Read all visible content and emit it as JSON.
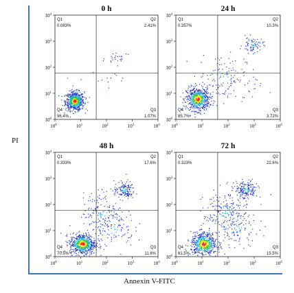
{
  "chart_data": {
    "type": "scatter",
    "ylabel": "PI",
    "xlabel": "Annexin V-FITC",
    "axis": {
      "scale": "log",
      "range": [
        1,
        10000
      ],
      "quadrant_gate": {
        "x": 40,
        "y": 60
      }
    },
    "ticks": [
      {
        "base": "10",
        "exp": "0"
      },
      {
        "base": "10",
        "exp": "1"
      },
      {
        "base": "10",
        "exp": "2"
      },
      {
        "base": "10",
        "exp": "3"
      },
      {
        "base": "10",
        "exp": "4"
      }
    ],
    "panels": [
      {
        "title": "0 h",
        "quadrants": [
          {
            "label": "Q1",
            "value": "0.083%",
            "pos": "top-left"
          },
          {
            "label": "Q2",
            "value": "2.41%",
            "pos": "top-right"
          },
          {
            "label": "Q3",
            "value": "1.07%",
            "pos": "bottom-right"
          },
          {
            "label": "Q4",
            "value": "96.4%",
            "pos": "bottom-left"
          }
        ],
        "populations": [
          {
            "x": 6,
            "y": 5,
            "sx": 0.18,
            "sy": 0.18,
            "count": 650
          },
          {
            "x": 300,
            "y": 250,
            "sx": 0.25,
            "sy": 0.12,
            "count": 22
          },
          {
            "x": 90,
            "y": 30,
            "sx": 0.5,
            "sy": 0.45,
            "count": 16
          }
        ]
      },
      {
        "title": "24 h",
        "quadrants": [
          {
            "label": "Q1",
            "value": "0.357%",
            "pos": "top-left"
          },
          {
            "label": "Q2",
            "value": "10.3%",
            "pos": "top-right"
          },
          {
            "label": "Q3",
            "value": "3.72%",
            "pos": "bottom-right"
          },
          {
            "label": "Q4",
            "value": "85.7%",
            "pos": "bottom-left"
          }
        ],
        "populations": [
          {
            "x": 7,
            "y": 6,
            "sx": 0.22,
            "sy": 0.22,
            "count": 650
          },
          {
            "x": 900,
            "y": 700,
            "sx": 0.2,
            "sy": 0.15,
            "count": 75
          },
          {
            "x": 60,
            "y": 45,
            "sx": 0.45,
            "sy": 0.45,
            "count": 110
          },
          {
            "x": 200,
            "y": 15,
            "sx": 0.5,
            "sy": 0.35,
            "count": 30
          }
        ]
      },
      {
        "title": "48 h",
        "quadrants": [
          {
            "label": "Q1",
            "value": "0.333%",
            "pos": "top-left"
          },
          {
            "label": "Q2",
            "value": "17.6%",
            "pos": "top-right"
          },
          {
            "label": "Q3",
            "value": "11.6%",
            "pos": "bottom-right"
          },
          {
            "label": "Q4",
            "value": "70.5%",
            "pos": "bottom-left"
          }
        ],
        "populations": [
          {
            "x": 12,
            "y": 3,
            "sx": 0.25,
            "sy": 0.2,
            "count": 650
          },
          {
            "x": 500,
            "y": 350,
            "sx": 0.2,
            "sy": 0.17,
            "count": 140
          },
          {
            "x": 80,
            "y": 50,
            "sx": 0.4,
            "sy": 0.4,
            "count": 170
          },
          {
            "x": 200,
            "y": 10,
            "sx": 0.4,
            "sy": 0.3,
            "count": 70
          }
        ]
      },
      {
        "title": "72 h",
        "quadrants": [
          {
            "label": "Q1",
            "value": "0.323%",
            "pos": "top-left"
          },
          {
            "label": "Q2",
            "value": "22.6%",
            "pos": "top-right"
          },
          {
            "label": "Q3",
            "value": "15.5%",
            "pos": "bottom-right"
          },
          {
            "label": "Q4",
            "value": "61.5%",
            "pos": "bottom-left"
          }
        ],
        "populations": [
          {
            "x": 12,
            "y": 3,
            "sx": 0.25,
            "sy": 0.22,
            "count": 600
          },
          {
            "x": 500,
            "y": 350,
            "sx": 0.22,
            "sy": 0.18,
            "count": 170
          },
          {
            "x": 80,
            "y": 50,
            "sx": 0.42,
            "sy": 0.42,
            "count": 200
          },
          {
            "x": 250,
            "y": 10,
            "sx": 0.4,
            "sy": 0.3,
            "count": 90
          }
        ]
      }
    ]
  }
}
